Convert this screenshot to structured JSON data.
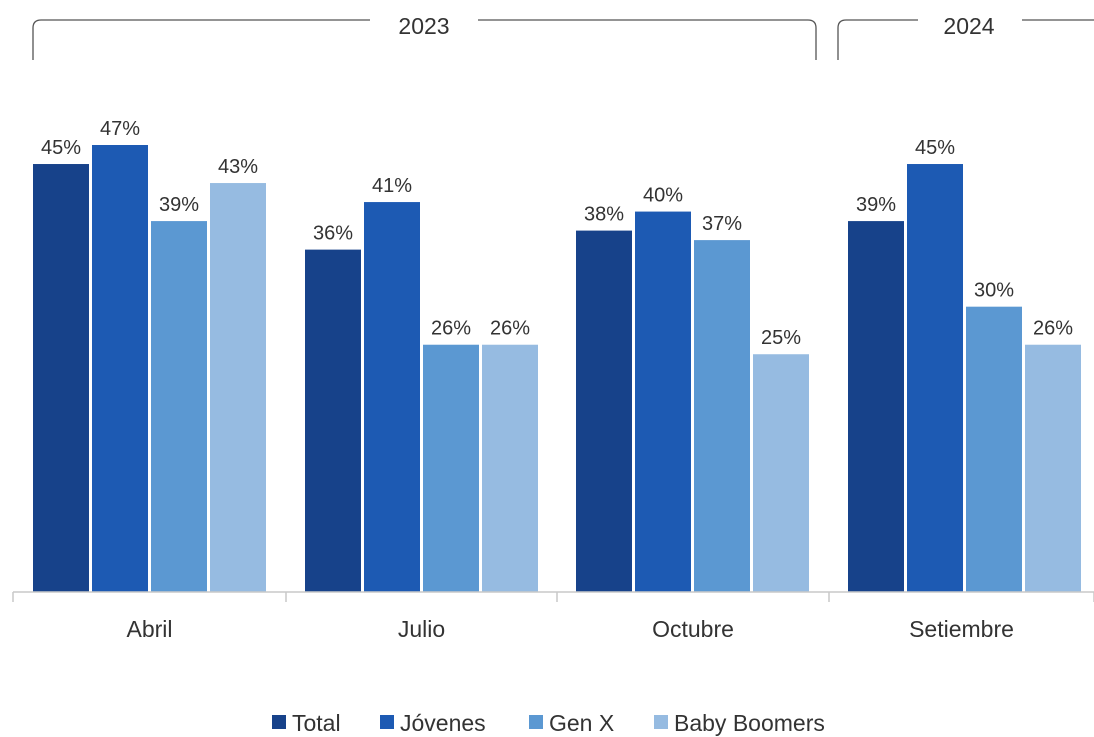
{
  "chart_data": {
    "type": "bar",
    "categories": [
      "Abril",
      "Julio",
      "Octubre",
      "Setiembre"
    ],
    "series": [
      {
        "name": "Total",
        "values": [
          45,
          36,
          38,
          39
        ],
        "color": "#17428a"
      },
      {
        "name": "Jóvenes",
        "values": [
          47,
          41,
          40,
          45
        ],
        "color": "#1d5ab3"
      },
      {
        "name": "Gen X",
        "values": [
          39,
          26,
          37,
          30
        ],
        "color": "#5b98d2"
      },
      {
        "name": "Baby Boomers",
        "values": [
          43,
          26,
          25,
          26
        ],
        "color": "#96bbe1"
      }
    ],
    "data_labels": [
      [
        "45%",
        "47%",
        "39%",
        "43%"
      ],
      [
        "36%",
        "41%",
        "26%",
        "26%"
      ],
      [
        "38%",
        "40%",
        "37%",
        "25%"
      ],
      [
        "39%",
        "45%",
        "30%",
        "26%"
      ]
    ],
    "year_groups": [
      {
        "label": "2023",
        "categories": [
          "Abril",
          "Julio",
          "Octubre"
        ]
      },
      {
        "label": "2024",
        "categories": [
          "Setiembre"
        ]
      }
    ],
    "ylim": [
      0,
      47
    ],
    "grid": false,
    "legend_position": "bottom-center",
    "title": "",
    "xlabel": "",
    "ylabel": ""
  }
}
